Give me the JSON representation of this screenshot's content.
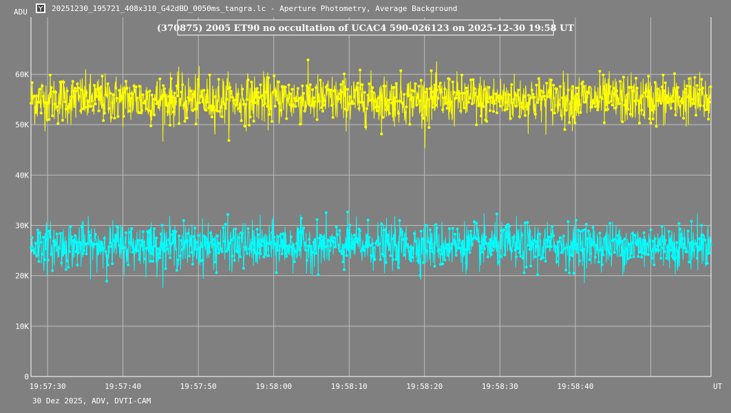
{
  "window": {
    "title": "20251230_195721_408x310_G42dBD_0050ms_tangra.lc - Aperture Photometry, Average Background",
    "icon": "tangra-app-icon"
  },
  "footer": {
    "text": "30 Dez 2025, ADV, DVTI-CAM"
  },
  "colors": {
    "background": "#808080",
    "grid": "#bfbfbf",
    "target": "#ffff00",
    "comparison": "#00ffff",
    "text": "#ffffff"
  },
  "chart_data": {
    "type": "line",
    "title": "(370875) 2005 ET90 no occultation of UCAC4 590-026123 on 2025-12-30  19:58 UT",
    "ylabel": "ADU",
    "xlabel": "UT",
    "ylim": [
      0,
      60000
    ],
    "yticks": [
      0,
      10000,
      20000,
      30000,
      40000,
      50000,
      60000
    ],
    "ytick_labels": [
      "0",
      "10K",
      "20K",
      "30K",
      "40K",
      "50K",
      "60K"
    ],
    "xlim_seconds": [
      87.8,
      178.0
    ],
    "xticks_seconds": [
      90,
      100,
      110,
      120,
      130,
      140,
      150,
      160,
      170
    ],
    "xtick_labels": [
      "19:57:30",
      "19:57:40",
      "19:57:50",
      "19:58:00",
      "19:58:10",
      "19:58:20",
      "19:58:30",
      "19:58:40",
      ""
    ],
    "grid": true,
    "frame_interval_s": 0.05,
    "series": [
      {
        "role": "target",
        "mean": 55000,
        "spread": 3200,
        "min": 42000,
        "max": 66500
      },
      {
        "role": "comparison",
        "mean": 26000,
        "spread": 3000,
        "min": 16500,
        "max": 37200
      }
    ]
  }
}
